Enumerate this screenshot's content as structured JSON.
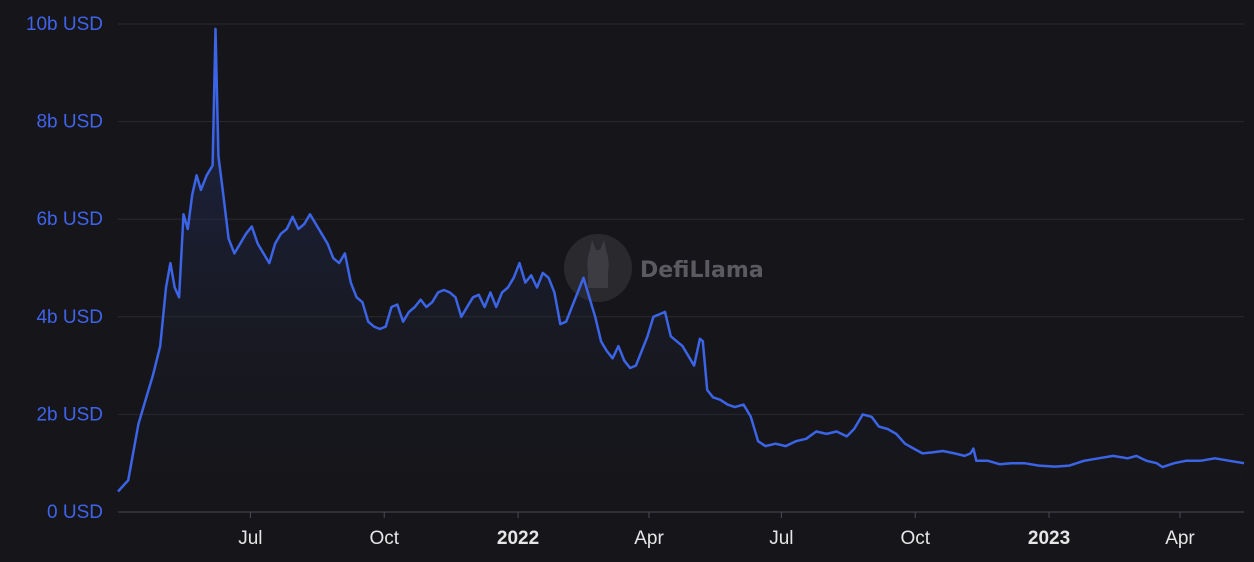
{
  "chart_data": {
    "type": "area",
    "watermark": "DefiLlama",
    "y_ticks": [
      "0 USD",
      "2b USD",
      "4b USD",
      "6b USD",
      "8b USD",
      "10b USD"
    ],
    "y_tick_values": [
      0,
      2,
      4,
      6,
      8,
      10
    ],
    "ylim": [
      0,
      10
    ],
    "x_range": [
      "2021-04-01",
      "2023-05-15"
    ],
    "x_ticks": [
      {
        "label": "Jul",
        "date": "2021-07-01",
        "bold": false
      },
      {
        "label": "Oct",
        "date": "2021-10-01",
        "bold": false
      },
      {
        "label": "2022",
        "date": "2022-01-01",
        "bold": true
      },
      {
        "label": "Apr",
        "date": "2022-04-01",
        "bold": false
      },
      {
        "label": "Jul",
        "date": "2022-07-01",
        "bold": false
      },
      {
        "label": "Oct",
        "date": "2022-10-01",
        "bold": false
      },
      {
        "label": "2023",
        "date": "2023-01-01",
        "bold": true
      },
      {
        "label": "Apr",
        "date": "2023-04-01",
        "bold": false
      }
    ],
    "grid": true,
    "line_color": "#3b64e6",
    "series": [
      {
        "values": [
          [
            "2021-04-01",
            0.42
          ],
          [
            "2021-04-08",
            0.65
          ],
          [
            "2021-04-15",
            1.8
          ],
          [
            "2021-04-20",
            2.3
          ],
          [
            "2021-04-25",
            2.8
          ],
          [
            "2021-04-30",
            3.4
          ],
          [
            "2021-05-04",
            4.6
          ],
          [
            "2021-05-07",
            5.1
          ],
          [
            "2021-05-10",
            4.6
          ],
          [
            "2021-05-13",
            4.4
          ],
          [
            "2021-05-16",
            6.1
          ],
          [
            "2021-05-19",
            5.8
          ],
          [
            "2021-05-22",
            6.5
          ],
          [
            "2021-05-25",
            6.9
          ],
          [
            "2021-05-28",
            6.6
          ],
          [
            "2021-06-01",
            6.9
          ],
          [
            "2021-06-05",
            7.1
          ],
          [
            "2021-06-07",
            9.9
          ],
          [
            "2021-06-09",
            7.3
          ],
          [
            "2021-06-12",
            6.6
          ],
          [
            "2021-06-16",
            5.6
          ],
          [
            "2021-06-20",
            5.3
          ],
          [
            "2021-06-24",
            5.5
          ],
          [
            "2021-06-28",
            5.7
          ],
          [
            "2021-07-02",
            5.85
          ],
          [
            "2021-07-06",
            5.5
          ],
          [
            "2021-07-10",
            5.3
          ],
          [
            "2021-07-14",
            5.1
          ],
          [
            "2021-07-18",
            5.5
          ],
          [
            "2021-07-22",
            5.7
          ],
          [
            "2021-07-26",
            5.8
          ],
          [
            "2021-07-30",
            6.05
          ],
          [
            "2021-08-03",
            5.8
          ],
          [
            "2021-08-07",
            5.9
          ],
          [
            "2021-08-11",
            6.1
          ],
          [
            "2021-08-15",
            5.9
          ],
          [
            "2021-08-19",
            5.7
          ],
          [
            "2021-08-23",
            5.5
          ],
          [
            "2021-08-27",
            5.2
          ],
          [
            "2021-08-31",
            5.1
          ],
          [
            "2021-09-04",
            5.3
          ],
          [
            "2021-09-08",
            4.7
          ],
          [
            "2021-09-12",
            4.4
          ],
          [
            "2021-09-16",
            4.3
          ],
          [
            "2021-09-20",
            3.9
          ],
          [
            "2021-09-24",
            3.8
          ],
          [
            "2021-09-28",
            3.75
          ],
          [
            "2021-10-02",
            3.8
          ],
          [
            "2021-10-06",
            4.2
          ],
          [
            "2021-10-10",
            4.25
          ],
          [
            "2021-10-14",
            3.9
          ],
          [
            "2021-10-18",
            4.1
          ],
          [
            "2021-10-22",
            4.2
          ],
          [
            "2021-10-26",
            4.35
          ],
          [
            "2021-10-30",
            4.2
          ],
          [
            "2021-11-03",
            4.3
          ],
          [
            "2021-11-07",
            4.5
          ],
          [
            "2021-11-11",
            4.55
          ],
          [
            "2021-11-15",
            4.5
          ],
          [
            "2021-11-19",
            4.4
          ],
          [
            "2021-11-23",
            4.0
          ],
          [
            "2021-11-27",
            4.2
          ],
          [
            "2021-12-01",
            4.4
          ],
          [
            "2021-12-05",
            4.45
          ],
          [
            "2021-12-09",
            4.2
          ],
          [
            "2021-12-13",
            4.5
          ],
          [
            "2021-12-17",
            4.2
          ],
          [
            "2021-12-21",
            4.5
          ],
          [
            "2021-12-25",
            4.6
          ],
          [
            "2021-12-29",
            4.8
          ],
          [
            "2022-01-02",
            5.1
          ],
          [
            "2022-01-06",
            4.7
          ],
          [
            "2022-01-10",
            4.85
          ],
          [
            "2022-01-14",
            4.6
          ],
          [
            "2022-01-18",
            4.9
          ],
          [
            "2022-01-22",
            4.8
          ],
          [
            "2022-01-26",
            4.5
          ],
          [
            "2022-01-30",
            3.85
          ],
          [
            "2022-02-03",
            3.9
          ],
          [
            "2022-02-07",
            4.2
          ],
          [
            "2022-02-11",
            4.5
          ],
          [
            "2022-02-15",
            4.8
          ],
          [
            "2022-02-19",
            4.4
          ],
          [
            "2022-02-23",
            4.0
          ],
          [
            "2022-02-27",
            3.5
          ],
          [
            "2022-03-03",
            3.3
          ],
          [
            "2022-03-07",
            3.15
          ],
          [
            "2022-03-11",
            3.4
          ],
          [
            "2022-03-15",
            3.1
          ],
          [
            "2022-03-19",
            2.95
          ],
          [
            "2022-03-23",
            3.0
          ],
          [
            "2022-03-27",
            3.3
          ],
          [
            "2022-03-31",
            3.6
          ],
          [
            "2022-04-04",
            4.0
          ],
          [
            "2022-04-08",
            4.05
          ],
          [
            "2022-04-12",
            4.1
          ],
          [
            "2022-04-16",
            3.6
          ],
          [
            "2022-04-20",
            3.5
          ],
          [
            "2022-04-24",
            3.4
          ],
          [
            "2022-04-28",
            3.2
          ],
          [
            "2022-05-02",
            3.0
          ],
          [
            "2022-05-06",
            3.55
          ],
          [
            "2022-05-08",
            3.5
          ],
          [
            "2022-05-11",
            2.5
          ],
          [
            "2022-05-15",
            2.35
          ],
          [
            "2022-05-20",
            2.3
          ],
          [
            "2022-05-25",
            2.2
          ],
          [
            "2022-05-30",
            2.15
          ],
          [
            "2022-06-05",
            2.2
          ],
          [
            "2022-06-10",
            1.95
          ],
          [
            "2022-06-15",
            1.45
          ],
          [
            "2022-06-20",
            1.35
          ],
          [
            "2022-06-27",
            1.4
          ],
          [
            "2022-07-04",
            1.35
          ],
          [
            "2022-07-11",
            1.45
          ],
          [
            "2022-07-18",
            1.5
          ],
          [
            "2022-07-25",
            1.65
          ],
          [
            "2022-08-01",
            1.6
          ],
          [
            "2022-08-08",
            1.65
          ],
          [
            "2022-08-15",
            1.55
          ],
          [
            "2022-08-20",
            1.7
          ],
          [
            "2022-08-26",
            2.0
          ],
          [
            "2022-09-01",
            1.95
          ],
          [
            "2022-09-06",
            1.75
          ],
          [
            "2022-09-12",
            1.7
          ],
          [
            "2022-09-18",
            1.6
          ],
          [
            "2022-09-24",
            1.4
          ],
          [
            "2022-09-30",
            1.3
          ],
          [
            "2022-10-06",
            1.2
          ],
          [
            "2022-10-12",
            1.22
          ],
          [
            "2022-10-20",
            1.25
          ],
          [
            "2022-10-28",
            1.2
          ],
          [
            "2022-11-04",
            1.15
          ],
          [
            "2022-11-08",
            1.2
          ],
          [
            "2022-11-10",
            1.3
          ],
          [
            "2022-11-12",
            1.05
          ],
          [
            "2022-11-20",
            1.05
          ],
          [
            "2022-11-28",
            0.98
          ],
          [
            "2022-12-06",
            1.0
          ],
          [
            "2022-12-15",
            1.0
          ],
          [
            "2022-12-25",
            0.95
          ],
          [
            "2023-01-05",
            0.93
          ],
          [
            "2023-01-15",
            0.95
          ],
          [
            "2023-01-25",
            1.05
          ],
          [
            "2023-02-04",
            1.1
          ],
          [
            "2023-02-14",
            1.15
          ],
          [
            "2023-02-24",
            1.1
          ],
          [
            "2023-03-02",
            1.15
          ],
          [
            "2023-03-09",
            1.05
          ],
          [
            "2023-03-16",
            1.0
          ],
          [
            "2023-03-20",
            0.92
          ],
          [
            "2023-03-28",
            1.0
          ],
          [
            "2023-04-05",
            1.05
          ],
          [
            "2023-04-15",
            1.05
          ],
          [
            "2023-04-25",
            1.1
          ],
          [
            "2023-05-05",
            1.05
          ],
          [
            "2023-05-15",
            1.0
          ]
        ]
      }
    ]
  }
}
